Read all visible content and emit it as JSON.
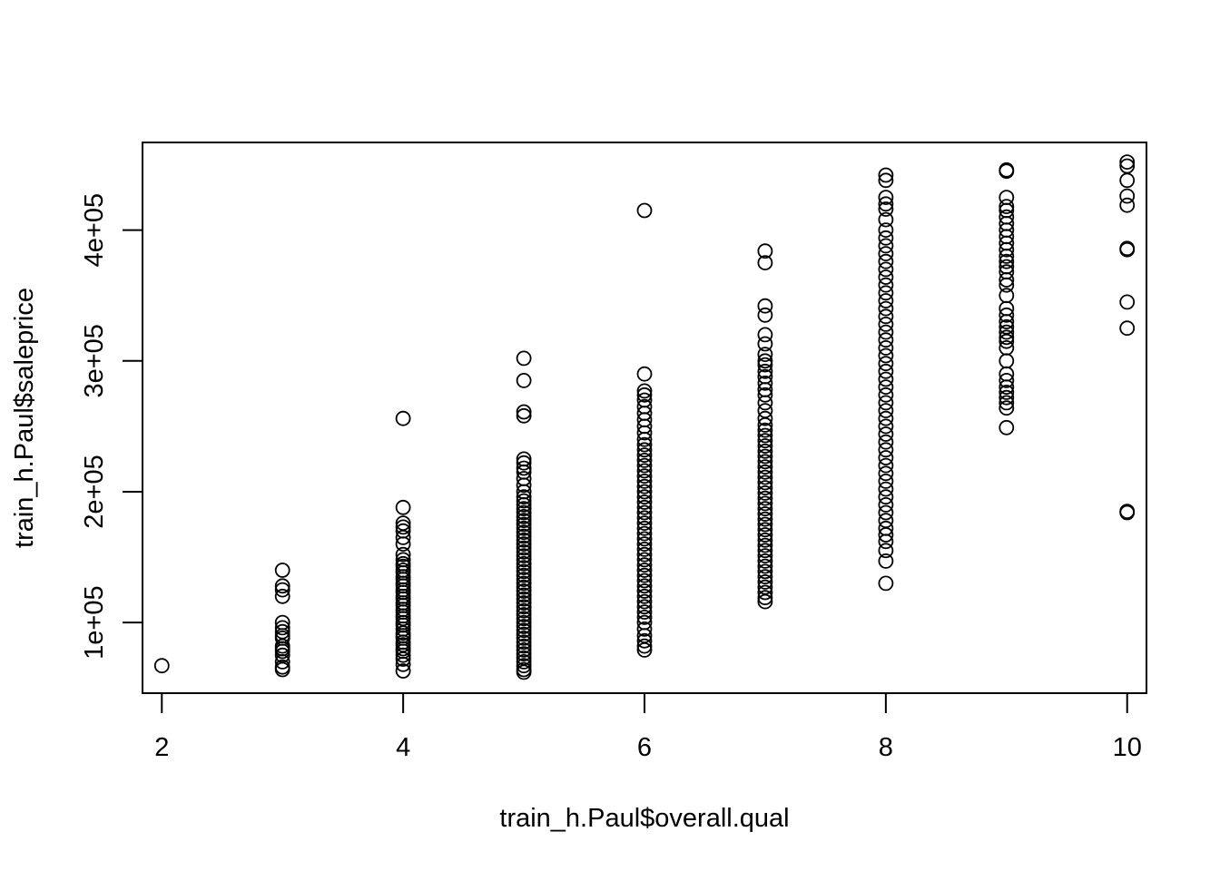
{
  "chart_data": {
    "type": "scatter",
    "title": "",
    "xlabel": "train_h.Paul$overall.qual",
    "ylabel": "train_h.Paul$saleprice",
    "xlim": [
      1.84,
      10.16
    ],
    "ylim": [
      46000,
      467000
    ],
    "x_ticks": [
      2,
      4,
      6,
      8,
      10
    ],
    "x_tick_labels": [
      "2",
      "4",
      "6",
      "8",
      "10"
    ],
    "y_ticks": [
      100000,
      200000,
      300000,
      400000
    ],
    "y_tick_labels": [
      "1e+05",
      "2e+05",
      "3e+05",
      "4e+05"
    ],
    "grid": false,
    "legend": "none",
    "marker": "open-circle",
    "colors": {
      "marker": "#000000",
      "axis": "#000000",
      "background": "#ffffff"
    },
    "series": [
      {
        "points": [
          [
            2,
            67000
          ],
          [
            3,
            64000
          ],
          [
            3,
            66000
          ],
          [
            3,
            70000
          ],
          [
            3,
            75000
          ],
          [
            3,
            78000
          ],
          [
            3,
            80000
          ],
          [
            3,
            82000
          ],
          [
            3,
            88000
          ],
          [
            3,
            90000
          ],
          [
            3,
            93000
          ],
          [
            3,
            96000
          ],
          [
            3,
            100000
          ],
          [
            3,
            120000
          ],
          [
            3,
            125000
          ],
          [
            3,
            128000
          ],
          [
            3,
            140000
          ],
          [
            4,
            63000
          ],
          [
            4,
            68000
          ],
          [
            4,
            72000
          ],
          [
            4,
            75000
          ],
          [
            4,
            78000
          ],
          [
            4,
            80000
          ],
          [
            4,
            83000
          ],
          [
            4,
            85000
          ],
          [
            4,
            88000
          ],
          [
            4,
            90000
          ],
          [
            4,
            92000
          ],
          [
            4,
            95000
          ],
          [
            4,
            98000
          ],
          [
            4,
            100000
          ],
          [
            4,
            103000
          ],
          [
            4,
            105000
          ],
          [
            4,
            108000
          ],
          [
            4,
            110000
          ],
          [
            4,
            113000
          ],
          [
            4,
            115000
          ],
          [
            4,
            118000
          ],
          [
            4,
            120000
          ],
          [
            4,
            123000
          ],
          [
            4,
            125000
          ],
          [
            4,
            128000
          ],
          [
            4,
            130000
          ],
          [
            4,
            133000
          ],
          [
            4,
            135000
          ],
          [
            4,
            138000
          ],
          [
            4,
            140000
          ],
          [
            4,
            143000
          ],
          [
            4,
            145000
          ],
          [
            4,
            148000
          ],
          [
            4,
            152000
          ],
          [
            4,
            160000
          ],
          [
            4,
            165000
          ],
          [
            4,
            170000
          ],
          [
            4,
            173000
          ],
          [
            4,
            176000
          ],
          [
            4,
            188000
          ],
          [
            4,
            256000
          ],
          [
            5,
            62000
          ],
          [
            5,
            64000
          ],
          [
            5,
            67000
          ],
          [
            5,
            70000
          ],
          [
            5,
            73000
          ],
          [
            5,
            76000
          ],
          [
            5,
            79000
          ],
          [
            5,
            82000
          ],
          [
            5,
            85000
          ],
          [
            5,
            88000
          ],
          [
            5,
            91000
          ],
          [
            5,
            94000
          ],
          [
            5,
            97000
          ],
          [
            5,
            100000
          ],
          [
            5,
            103000
          ],
          [
            5,
            106000
          ],
          [
            5,
            109000
          ],
          [
            5,
            112000
          ],
          [
            5,
            115000
          ],
          [
            5,
            118000
          ],
          [
            5,
            121000
          ],
          [
            5,
            124000
          ],
          [
            5,
            127000
          ],
          [
            5,
            130000
          ],
          [
            5,
            133000
          ],
          [
            5,
            136000
          ],
          [
            5,
            139000
          ],
          [
            5,
            142000
          ],
          [
            5,
            145000
          ],
          [
            5,
            148000
          ],
          [
            5,
            151000
          ],
          [
            5,
            154000
          ],
          [
            5,
            157000
          ],
          [
            5,
            160000
          ],
          [
            5,
            163000
          ],
          [
            5,
            166000
          ],
          [
            5,
            169000
          ],
          [
            5,
            172000
          ],
          [
            5,
            175000
          ],
          [
            5,
            178000
          ],
          [
            5,
            181000
          ],
          [
            5,
            184000
          ],
          [
            5,
            187000
          ],
          [
            5,
            190000
          ],
          [
            5,
            193000
          ],
          [
            5,
            196000
          ],
          [
            5,
            200000
          ],
          [
            5,
            205000
          ],
          [
            5,
            210000
          ],
          [
            5,
            215000
          ],
          [
            5,
            218000
          ],
          [
            5,
            222000
          ],
          [
            5,
            225000
          ],
          [
            5,
            258000
          ],
          [
            5,
            261000
          ],
          [
            5,
            285000
          ],
          [
            5,
            302000
          ],
          [
            6,
            79000
          ],
          [
            6,
            82000
          ],
          [
            6,
            86000
          ],
          [
            6,
            90000
          ],
          [
            6,
            95000
          ],
          [
            6,
            100000
          ],
          [
            6,
            104000
          ],
          [
            6,
            108000
          ],
          [
            6,
            112000
          ],
          [
            6,
            116000
          ],
          [
            6,
            120000
          ],
          [
            6,
            124000
          ],
          [
            6,
            128000
          ],
          [
            6,
            132000
          ],
          [
            6,
            136000
          ],
          [
            6,
            140000
          ],
          [
            6,
            144000
          ],
          [
            6,
            148000
          ],
          [
            6,
            152000
          ],
          [
            6,
            156000
          ],
          [
            6,
            160000
          ],
          [
            6,
            164000
          ],
          [
            6,
            168000
          ],
          [
            6,
            172000
          ],
          [
            6,
            176000
          ],
          [
            6,
            180000
          ],
          [
            6,
            184000
          ],
          [
            6,
            188000
          ],
          [
            6,
            192000
          ],
          [
            6,
            196000
          ],
          [
            6,
            200000
          ],
          [
            6,
            204000
          ],
          [
            6,
            208000
          ],
          [
            6,
            212000
          ],
          [
            6,
            216000
          ],
          [
            6,
            220000
          ],
          [
            6,
            224000
          ],
          [
            6,
            228000
          ],
          [
            6,
            232000
          ],
          [
            6,
            236000
          ],
          [
            6,
            240000
          ],
          [
            6,
            245000
          ],
          [
            6,
            250000
          ],
          [
            6,
            255000
          ],
          [
            6,
            260000
          ],
          [
            6,
            265000
          ],
          [
            6,
            270000
          ],
          [
            6,
            274000
          ],
          [
            6,
            277000
          ],
          [
            6,
            290000
          ],
          [
            6,
            415000
          ],
          [
            7,
            116000
          ],
          [
            7,
            119000
          ],
          [
            7,
            123000
          ],
          [
            7,
            127000
          ],
          [
            7,
            131000
          ],
          [
            7,
            135000
          ],
          [
            7,
            139000
          ],
          [
            7,
            143000
          ],
          [
            7,
            147000
          ],
          [
            7,
            151000
          ],
          [
            7,
            155000
          ],
          [
            7,
            159000
          ],
          [
            7,
            163000
          ],
          [
            7,
            167000
          ],
          [
            7,
            171000
          ],
          [
            7,
            175000
          ],
          [
            7,
            179000
          ],
          [
            7,
            183000
          ],
          [
            7,
            187000
          ],
          [
            7,
            191000
          ],
          [
            7,
            195000
          ],
          [
            7,
            199000
          ],
          [
            7,
            203000
          ],
          [
            7,
            207000
          ],
          [
            7,
            211000
          ],
          [
            7,
            215000
          ],
          [
            7,
            219000
          ],
          [
            7,
            223000
          ],
          [
            7,
            227000
          ],
          [
            7,
            231000
          ],
          [
            7,
            235000
          ],
          [
            7,
            239000
          ],
          [
            7,
            243000
          ],
          [
            7,
            247000
          ],
          [
            7,
            251000
          ],
          [
            7,
            256000
          ],
          [
            7,
            262000
          ],
          [
            7,
            268000
          ],
          [
            7,
            274000
          ],
          [
            7,
            278000
          ],
          [
            7,
            283000
          ],
          [
            7,
            288000
          ],
          [
            7,
            292000
          ],
          [
            7,
            297000
          ],
          [
            7,
            300000
          ],
          [
            7,
            305000
          ],
          [
            7,
            313000
          ],
          [
            7,
            320000
          ],
          [
            7,
            335000
          ],
          [
            7,
            342000
          ],
          [
            7,
            375000
          ],
          [
            7,
            384000
          ],
          [
            8,
            130000
          ],
          [
            8,
            147000
          ],
          [
            8,
            155000
          ],
          [
            8,
            162000
          ],
          [
            8,
            167000
          ],
          [
            8,
            172000
          ],
          [
            8,
            178000
          ],
          [
            8,
            184000
          ],
          [
            8,
            190000
          ],
          [
            8,
            196000
          ],
          [
            8,
            202000
          ],
          [
            8,
            208000
          ],
          [
            8,
            214000
          ],
          [
            8,
            220000
          ],
          [
            8,
            226000
          ],
          [
            8,
            232000
          ],
          [
            8,
            238000
          ],
          [
            8,
            244000
          ],
          [
            8,
            250000
          ],
          [
            8,
            256000
          ],
          [
            8,
            262000
          ],
          [
            8,
            268000
          ],
          [
            8,
            274000
          ],
          [
            8,
            280000
          ],
          [
            8,
            286000
          ],
          [
            8,
            292000
          ],
          [
            8,
            298000
          ],
          [
            8,
            304000
          ],
          [
            8,
            310000
          ],
          [
            8,
            316000
          ],
          [
            8,
            322000
          ],
          [
            8,
            328000
          ],
          [
            8,
            334000
          ],
          [
            8,
            340000
          ],
          [
            8,
            346000
          ],
          [
            8,
            352000
          ],
          [
            8,
            358000
          ],
          [
            8,
            364000
          ],
          [
            8,
            370000
          ],
          [
            8,
            376000
          ],
          [
            8,
            382000
          ],
          [
            8,
            388000
          ],
          [
            8,
            394000
          ],
          [
            8,
            400000
          ],
          [
            8,
            408000
          ],
          [
            8,
            416000
          ],
          [
            8,
            420000
          ],
          [
            8,
            425000
          ],
          [
            8,
            438000
          ],
          [
            8,
            442000
          ],
          [
            9,
            249000
          ],
          [
            9,
            264000
          ],
          [
            9,
            268000
          ],
          [
            9,
            272000
          ],
          [
            9,
            276000
          ],
          [
            9,
            280000
          ],
          [
            9,
            285000
          ],
          [
            9,
            290000
          ],
          [
            9,
            300000
          ],
          [
            9,
            310000
          ],
          [
            9,
            315000
          ],
          [
            9,
            318000
          ],
          [
            9,
            322000
          ],
          [
            9,
            326000
          ],
          [
            9,
            330000
          ],
          [
            9,
            335000
          ],
          [
            9,
            340000
          ],
          [
            9,
            350000
          ],
          [
            9,
            358000
          ],
          [
            9,
            362000
          ],
          [
            9,
            368000
          ],
          [
            9,
            372000
          ],
          [
            9,
            376000
          ],
          [
            9,
            380000
          ],
          [
            9,
            385000
          ],
          [
            9,
            390000
          ],
          [
            9,
            395000
          ],
          [
            9,
            400000
          ],
          [
            9,
            405000
          ],
          [
            9,
            410000
          ],
          [
            9,
            415000
          ],
          [
            9,
            418000
          ],
          [
            9,
            425000
          ],
          [
            9,
            445000
          ],
          [
            9,
            446000
          ],
          [
            10,
            184000
          ],
          [
            10,
            185000
          ],
          [
            10,
            325000
          ],
          [
            10,
            345000
          ],
          [
            10,
            385000
          ],
          [
            10,
            386000
          ],
          [
            10,
            419000
          ],
          [
            10,
            426000
          ],
          [
            10,
            438000
          ],
          [
            10,
            449000
          ],
          [
            10,
            452000
          ]
        ]
      }
    ]
  }
}
